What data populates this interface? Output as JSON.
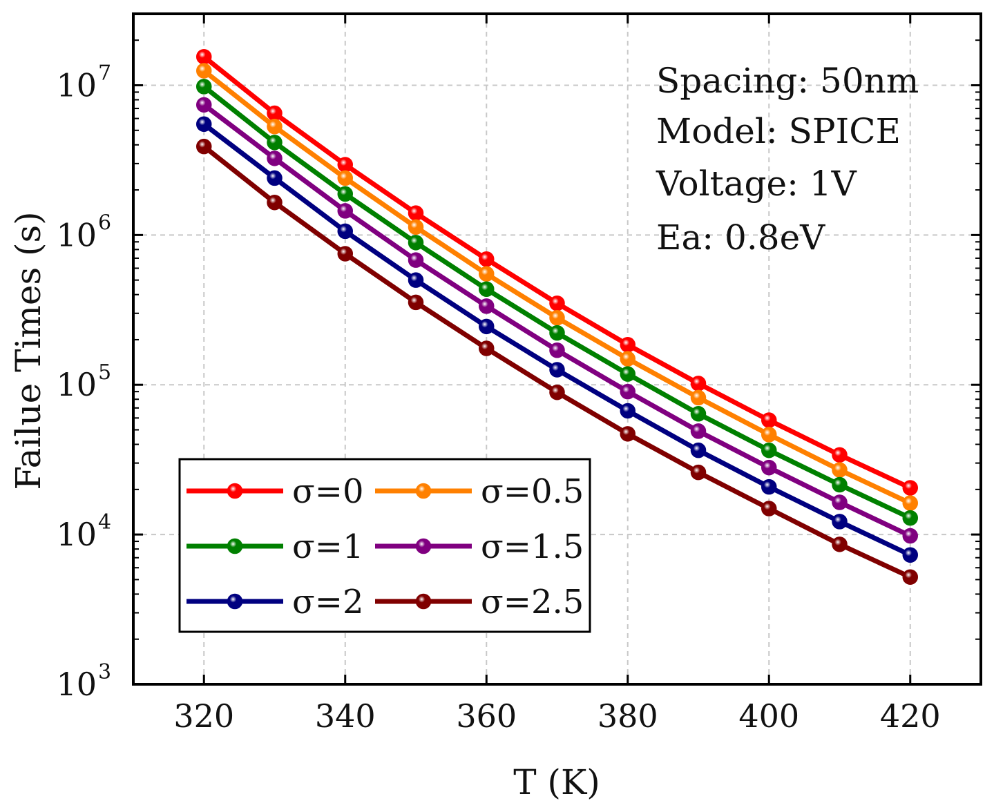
{
  "chart_data": {
    "type": "line",
    "title": "",
    "xlabel": "T (K)",
    "ylabel": "Failue Times (s)",
    "xlim": [
      310,
      430
    ],
    "ylim": [
      1000,
      30000000
    ],
    "yscale": "log",
    "xticks": [
      320,
      340,
      360,
      380,
      400,
      420
    ],
    "xtick_labels": [
      "320",
      "340",
      "360",
      "380",
      "400",
      "420"
    ],
    "yticks": [
      1000,
      10000,
      100000,
      1000000,
      10000000
    ],
    "ytick_labels": [
      {
        "base": "10",
        "exp": "3"
      },
      {
        "base": "10",
        "exp": "4"
      },
      {
        "base": "10",
        "exp": "5"
      },
      {
        "base": "10",
        "exp": "6"
      },
      {
        "base": "10",
        "exp": "7"
      }
    ],
    "grid": true,
    "legend_position": "lower-left",
    "annotations": [
      "Spacing: 50nm",
      "Model: SPICE",
      "Voltage: 1V",
      "Ea: 0.8eV"
    ],
    "x": [
      320,
      330,
      340,
      350,
      360,
      370,
      380,
      390,
      400,
      410,
      420
    ],
    "series": [
      {
        "name": "σ=0",
        "color": "#ff0000",
        "values": [
          15500000,
          6500000,
          2950000,
          1400000,
          690000,
          350000,
          185000,
          102000,
          58000,
          34000,
          20500
        ]
      },
      {
        "name": "σ=0.5",
        "color": "#ff8000",
        "values": [
          12500000,
          5300000,
          2400000,
          1130000,
          550000,
          280000,
          149000,
          82000,
          46500,
          27000,
          16200
        ]
      },
      {
        "name": "σ=1",
        "color": "#008000",
        "values": [
          9800000,
          4150000,
          1880000,
          890000,
          435000,
          222000,
          118000,
          64000,
          36500,
          21500,
          12900
        ]
      },
      {
        "name": "σ=1.5",
        "color": "#800080",
        "values": [
          7400000,
          3250000,
          1450000,
          680000,
          335000,
          170000,
          90000,
          49000,
          28000,
          16400,
          9800
        ]
      },
      {
        "name": "σ=2",
        "color": "#000080",
        "values": [
          5500000,
          2400000,
          1060000,
          500000,
          245000,
          126000,
          67000,
          36500,
          20800,
          12200,
          7300
        ]
      },
      {
        "name": "σ=2.5",
        "color": "#800000",
        "values": [
          3900000,
          1650000,
          750000,
          355000,
          175000,
          89000,
          47000,
          26000,
          14900,
          8600,
          5200
        ]
      }
    ]
  }
}
